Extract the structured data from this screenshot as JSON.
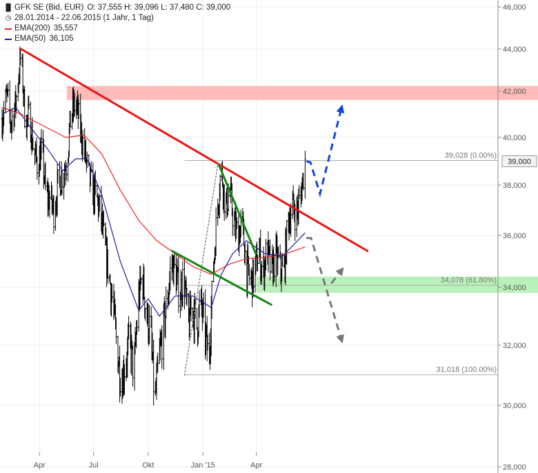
{
  "header": {
    "instrument": "GFK SE (Bid, EUR)",
    "ohlc": "O: 37,555  H: 39,096  L: 37,480  C: 39,000",
    "period": "28.01.2014 - 22.06.2015 (1 Jahr, 1 Tag)"
  },
  "legend": [
    {
      "label": "EMA(200)",
      "value": "35,557",
      "color": "#ee2222"
    },
    {
      "label": "EMA(50)",
      "value": "36,105",
      "color": "#1a1a99"
    }
  ],
  "icons": {
    "chart_type": "ohlc-bars-icon",
    "period": "clock-icon"
  },
  "colors": {
    "price": "#000000",
    "ema200": "#ee2222",
    "ema50": "#1a1a99",
    "trend": "#ee1111",
    "triangle": "#118811",
    "resist_zone": "#ffb3b3",
    "support_zone": "#b3f0b3",
    "projection_up": "#1144dd",
    "projection_down": "#777777",
    "grid": "#eeeeee"
  },
  "chart_data": {
    "type": "ohlc",
    "title": "GFK SE (Bid, EUR)",
    "ylim": [
      28,
      46.5
    ],
    "y_ticks": [
      28,
      30,
      32,
      34,
      36,
      38,
      40,
      42,
      44,
      46
    ],
    "y_tick_labels": [
      "28,000",
      "30,000",
      "32,000",
      "34,000",
      "36,000",
      "38,000",
      "40,000",
      "42,000",
      "44,000",
      "46,000"
    ],
    "x_ticks": [
      {
        "label": "Apr",
        "date": "2014-04-01"
      },
      {
        "label": "Jul",
        "date": "2014-07-01"
      },
      {
        "label": "Okt",
        "date": "2014-10-01"
      },
      {
        "label": "Jan '15",
        "date": "2015-01-01"
      },
      {
        "label": "Apr",
        "date": "2015-04-01"
      }
    ],
    "date_range": [
      "2014-01-28",
      "2015-06-22"
    ],
    "last_price": {
      "value": 39.0,
      "label": "39,000"
    },
    "price_path": [
      [
        "2014-01-28",
        40.8
      ],
      [
        "2014-02-05",
        41.8
      ],
      [
        "2014-02-12",
        40.6
      ],
      [
        "2014-02-20",
        41.5
      ],
      [
        "2014-03-01",
        43.8
      ],
      [
        "2014-03-08",
        40.6
      ],
      [
        "2014-03-15",
        40.9
      ],
      [
        "2014-03-22",
        39.5
      ],
      [
        "2014-03-29",
        38.8
      ],
      [
        "2014-04-05",
        39.5
      ],
      [
        "2014-04-12",
        37.5
      ],
      [
        "2014-04-18",
        37.5
      ],
      [
        "2014-04-25",
        37.0
      ],
      [
        "2014-05-02",
        38.0
      ],
      [
        "2014-05-10",
        38.5
      ],
      [
        "2014-05-17",
        39.0
      ],
      [
        "2014-05-24",
        41.0
      ],
      [
        "2014-06-01",
        41.5
      ],
      [
        "2014-06-08",
        40.5
      ],
      [
        "2014-06-15",
        39.5
      ],
      [
        "2014-06-22",
        38.5
      ],
      [
        "2014-06-29",
        37.8
      ],
      [
        "2014-07-06",
        37.5
      ],
      [
        "2014-07-13",
        36.8
      ],
      [
        "2014-07-20",
        35.5
      ],
      [
        "2014-07-27",
        34.5
      ],
      [
        "2014-08-03",
        33.3
      ],
      [
        "2014-08-10",
        31.8
      ],
      [
        "2014-08-17",
        30.8
      ],
      [
        "2014-08-24",
        31.5
      ],
      [
        "2014-08-31",
        32.2
      ],
      [
        "2014-09-07",
        31.0
      ],
      [
        "2014-09-14",
        33.5
      ],
      [
        "2014-09-21",
        34.5
      ],
      [
        "2014-09-28",
        33.0
      ],
      [
        "2014-10-05",
        32.5
      ],
      [
        "2014-10-12",
        30.0
      ],
      [
        "2014-10-19",
        31.5
      ],
      [
        "2014-10-26",
        32.5
      ],
      [
        "2014-11-02",
        33.5
      ],
      [
        "2014-11-09",
        35.0
      ],
      [
        "2014-11-16",
        34.5
      ],
      [
        "2014-11-23",
        33.8
      ],
      [
        "2014-11-30",
        34.5
      ],
      [
        "2014-12-07",
        32.5
      ],
      [
        "2014-12-14",
        33.5
      ],
      [
        "2014-12-21",
        32.5
      ],
      [
        "2014-12-28",
        33.5
      ],
      [
        "2015-01-04",
        32.5
      ],
      [
        "2015-01-11",
        31.5
      ],
      [
        "2015-01-18",
        34.5
      ],
      [
        "2015-01-25",
        37.0
      ],
      [
        "2015-02-01",
        38.8
      ],
      [
        "2015-02-08",
        37.0
      ],
      [
        "2015-02-15",
        37.8
      ],
      [
        "2015-02-22",
        36.5
      ],
      [
        "2015-03-01",
        36.0
      ],
      [
        "2015-03-08",
        36.5
      ],
      [
        "2015-03-15",
        34.8
      ],
      [
        "2015-03-22",
        34.2
      ],
      [
        "2015-03-29",
        34.5
      ],
      [
        "2015-04-05",
        35.5
      ],
      [
        "2015-04-12",
        34.5
      ],
      [
        "2015-04-19",
        35.5
      ],
      [
        "2015-04-26",
        34.5
      ],
      [
        "2015-05-03",
        35.2
      ],
      [
        "2015-05-10",
        34.8
      ],
      [
        "2015-05-17",
        34.5
      ],
      [
        "2015-05-24",
        36.5
      ],
      [
        "2015-05-31",
        37.2
      ],
      [
        "2015-06-07",
        36.8
      ],
      [
        "2015-06-14",
        37.5
      ],
      [
        "2015-06-22",
        39.0
      ]
    ],
    "series": [
      {
        "name": "EMA(200)",
        "points": [
          [
            "2014-01-28",
            41.3
          ],
          [
            "2014-03-01",
            41.0
          ],
          [
            "2014-04-15",
            40.4
          ],
          [
            "2014-05-15",
            40.0
          ],
          [
            "2014-06-15",
            40.1
          ],
          [
            "2014-07-15",
            39.3
          ],
          [
            "2014-08-15",
            37.8
          ],
          [
            "2014-09-15",
            36.6
          ],
          [
            "2014-10-15",
            35.8
          ],
          [
            "2014-11-15",
            35.3
          ],
          [
            "2014-12-15",
            34.8
          ],
          [
            "2015-01-15",
            34.5
          ],
          [
            "2015-02-15",
            34.9
          ],
          [
            "2015-03-15",
            35.1
          ],
          [
            "2015-04-15",
            35.15
          ],
          [
            "2015-05-15",
            35.25
          ],
          [
            "2015-06-22",
            35.557
          ]
        ]
      },
      {
        "name": "EMA(50)",
        "points": [
          [
            "2014-01-28",
            41.0
          ],
          [
            "2014-02-20",
            41.3
          ],
          [
            "2014-03-15",
            40.5
          ],
          [
            "2014-04-15",
            39.5
          ],
          [
            "2014-05-10",
            38.6
          ],
          [
            "2014-06-01",
            39.1
          ],
          [
            "2014-06-20",
            39.1
          ],
          [
            "2014-07-15",
            37.6
          ],
          [
            "2014-08-15",
            35.0
          ],
          [
            "2014-09-15",
            33.2
          ],
          [
            "2014-10-01",
            33.6
          ],
          [
            "2014-10-20",
            33.0
          ],
          [
            "2014-11-15",
            33.7
          ],
          [
            "2014-12-15",
            33.7
          ],
          [
            "2015-01-15",
            33.3
          ],
          [
            "2015-02-01",
            34.5
          ],
          [
            "2015-02-20",
            35.3
          ],
          [
            "2015-03-15",
            35.8
          ],
          [
            "2015-04-15",
            35.3
          ],
          [
            "2015-05-15",
            35.2
          ],
          [
            "2015-06-22",
            36.105
          ]
        ]
      }
    ],
    "trendlines": [
      {
        "type": "resistance",
        "from": [
          "2014-03-01",
          44.0
        ],
        "to": [
          "2015-10-05",
          35.4
        ]
      },
      {
        "type": "triangle_upper",
        "from": [
          "2015-01-27",
          38.9
        ],
        "to": [
          "2015-03-31",
          35.3
        ]
      },
      {
        "type": "triangle_lower",
        "from": [
          "2014-11-10",
          35.4
        ],
        "to": [
          "2015-04-26",
          33.4
        ]
      },
      {
        "type": "fib_connector",
        "from": [
          "2014-12-01",
          31.0
        ],
        "to": [
          "2015-01-27",
          39.0
        ]
      }
    ],
    "zones": [
      {
        "name": "resistance",
        "from_date": "2014-05-17",
        "y_range": [
          41.8,
          42.05
        ]
      },
      {
        "name": "support",
        "from_date": "2015-04-01",
        "y_range": [
          33.95,
          34.25
        ]
      }
    ],
    "fibonacci": {
      "from_date": "2014-12-01",
      "levels": [
        {
          "value": 39.028,
          "label": "39,028 (0.00%)"
        },
        {
          "value": 34.078,
          "label": "34,078 (61.80%)"
        },
        {
          "value": 31.018,
          "label": "31,018 (100.00%)"
        }
      ]
    },
    "projections": [
      {
        "name": "bullish",
        "points": [
          [
            "2015-06-24",
            39.0
          ],
          [
            "2015-07-01",
            38.95
          ],
          [
            "2015-07-17",
            37.65
          ],
          [
            "2015-08-22",
            41.25
          ]
        ]
      },
      {
        "name": "bearish",
        "points": [
          [
            "2015-06-24",
            35.9
          ],
          [
            "2015-07-02",
            35.9
          ],
          [
            "2015-08-22",
            32.2
          ]
        ]
      },
      {
        "name": "bearish-alt",
        "points": [
          [
            "2015-08-05",
            34.15
          ],
          [
            "2015-08-22",
            34.65
          ]
        ]
      }
    ]
  }
}
